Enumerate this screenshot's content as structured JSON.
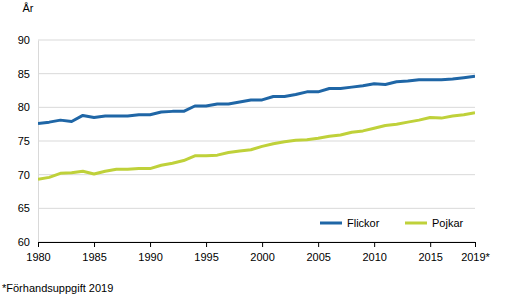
{
  "chart_data": {
    "type": "line",
    "y_label": "År",
    "footnote": "*Förhandsuppgift 2019",
    "x": [
      1980,
      1981,
      1982,
      1983,
      1984,
      1985,
      1986,
      1987,
      1988,
      1989,
      1990,
      1991,
      1992,
      1993,
      1994,
      1995,
      1996,
      1997,
      1998,
      1999,
      2000,
      2001,
      2002,
      2003,
      2004,
      2005,
      2006,
      2007,
      2008,
      2009,
      2010,
      2011,
      2012,
      2013,
      2014,
      2015,
      2016,
      2017,
      2018,
      2019
    ],
    "series": [
      {
        "name": "Flickor",
        "color": "#1f66a6",
        "values": [
          77.6,
          77.8,
          78.1,
          77.9,
          78.8,
          78.5,
          78.7,
          78.7,
          78.7,
          78.9,
          78.9,
          79.3,
          79.4,
          79.4,
          80.2,
          80.2,
          80.5,
          80.5,
          80.8,
          81.1,
          81.1,
          81.6,
          81.6,
          81.9,
          82.3,
          82.3,
          82.8,
          82.8,
          83.0,
          83.2,
          83.5,
          83.4,
          83.8,
          83.9,
          84.1,
          84.1,
          84.1,
          84.2,
          84.4,
          84.6
        ]
      },
      {
        "name": "Pojkar",
        "color": "#bfd13a",
        "values": [
          69.3,
          69.6,
          70.2,
          70.3,
          70.5,
          70.1,
          70.5,
          70.8,
          70.8,
          70.9,
          70.9,
          71.4,
          71.7,
          72.1,
          72.8,
          72.8,
          72.9,
          73.3,
          73.5,
          73.7,
          74.2,
          74.6,
          74.9,
          75.1,
          75.2,
          75.4,
          75.7,
          75.9,
          76.3,
          76.5,
          76.9,
          77.3,
          77.5,
          77.8,
          78.1,
          78.5,
          78.4,
          78.7,
          78.9,
          79.2
        ]
      }
    ],
    "xlim": [
      1980,
      2019
    ],
    "xticks": [
      1980,
      1985,
      1990,
      1995,
      2000,
      2005,
      2010,
      2015,
      {
        "value": 2019,
        "label": "2019*"
      }
    ],
    "ylim": [
      60,
      90
    ],
    "yticks": [
      60,
      65,
      70,
      75,
      80,
      85,
      90
    ],
    "grid": true,
    "legend": "lower right"
  }
}
